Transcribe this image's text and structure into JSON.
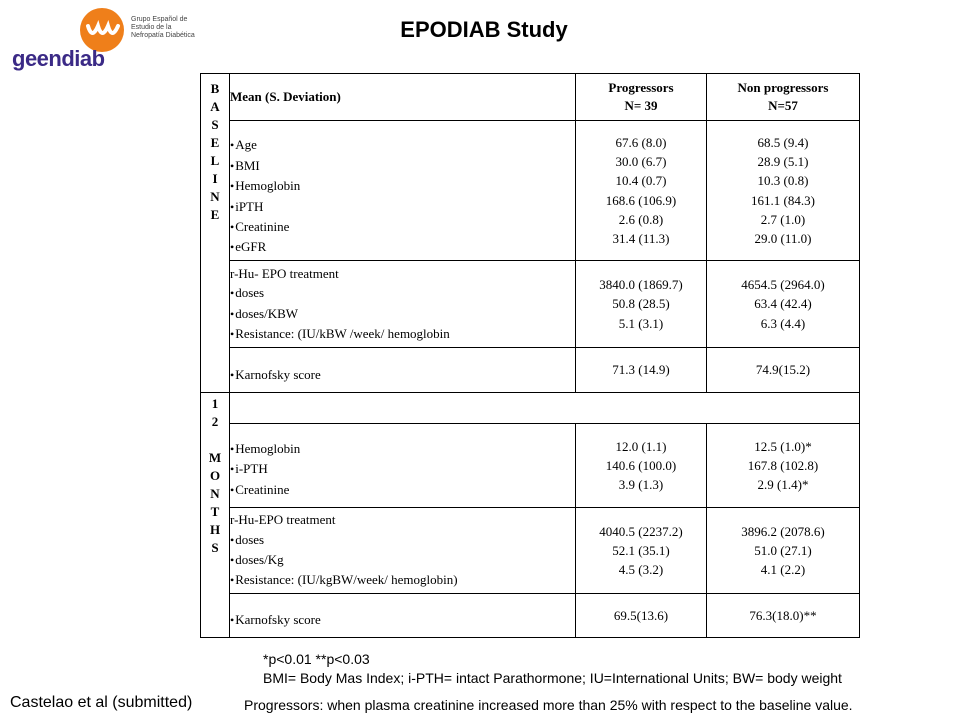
{
  "logo": {
    "name": "geendiab",
    "org_line1": "Grupo Español de",
    "org_line2": "Estudio de la",
    "org_line3": "Nefropatía Diabética",
    "colors": {
      "mark": "#ef7f1a",
      "text": "#3b2a86"
    }
  },
  "title": "EPODIAB Study",
  "table": {
    "baseline_label": [
      "B",
      "A",
      "S",
      "E",
      "L",
      "I",
      "N",
      "E"
    ],
    "months_label": [
      "1",
      "2",
      "",
      "M",
      "O",
      "N",
      "T",
      "H",
      "S"
    ],
    "header": {
      "col1": "Mean (S. Deviation)",
      "prog_line1": "Progressors",
      "prog_line2": "N= 39",
      "nonprog_line1": "Non progressors",
      "nonprog_line2": "N=57"
    },
    "baseline_rows": [
      {
        "title": "",
        "items": [
          "Age",
          "BMI",
          "Hemoglobin",
          "iPTH",
          "Creatinine",
          "eGFR"
        ],
        "progressors": [
          "67.6 (8.0)",
          "30.0 (6.7)",
          "10.4 (0.7)",
          "168.6 (106.9)",
          "2.6 (0.8)",
          "31.4 (11.3)"
        ],
        "non_progressors": [
          "68.5 (9.4)",
          "28.9 (5.1)",
          "10.3 (0.8)",
          "161.1 (84.3)",
          "2.7 (1.0)",
          "29.0 (11.0)"
        ]
      },
      {
        "title": "r-Hu- EPO treatment",
        "items": [
          "doses",
          "doses/KBW",
          "Resistance: (IU/kBW /week/ hemoglobin"
        ],
        "progressors": [
          "3840.0 (1869.7)",
          "50.8 (28.5)",
          "5.1 (3.1)"
        ],
        "non_progressors": [
          "4654.5 (2964.0)",
          "63.4 (42.4)",
          "6.3 (4.4)"
        ]
      },
      {
        "title": "",
        "items": [
          "Karnofsky score"
        ],
        "progressors": [
          "71.3 (14.9)"
        ],
        "non_progressors": [
          "74.9(15.2)"
        ]
      }
    ],
    "months_rows": [
      {
        "title": "",
        "items": [
          "Hemoglobin",
          "i-PTH",
          "Creatinine"
        ],
        "progressors": [
          "12.0 (1.1)",
          "140.6 (100.0)",
          "3.9 (1.3)"
        ],
        "non_progressors": [
          "12.5 (1.0)*",
          "167.8 (102.8)",
          "2.9 (1.4)*"
        ]
      },
      {
        "title": "r-Hu-EPO treatment",
        "items": [
          "doses",
          "doses/Kg",
          "Resistance: (IU/kgBW/week/ hemoglobin)"
        ],
        "progressors": [
          "4040.5 (2237.2)",
          "52.1 (35.1)",
          "4.5 (3.2)"
        ],
        "non_progressors": [
          "3896.2 (2078.6)",
          "51.0 (27.1)",
          "4.1 (2.2)"
        ]
      },
      {
        "title": "",
        "items": [
          "Karnofsky score"
        ],
        "progressors": [
          "69.5(13.6)"
        ],
        "non_progressors": [
          "76.3(18.0)**"
        ]
      }
    ]
  },
  "footnotes": {
    "significance": "*p<0.01 **p<0.03",
    "abbreviations": "BMI= Body Mas Index; i-PTH= intact Parathormone; IU=International Units; BW= body weight",
    "citation": "Castelao et al (submitted)",
    "progressors_def": "Progressors: when plasma creatinine increased more than 25% with respect to the baseline value."
  }
}
